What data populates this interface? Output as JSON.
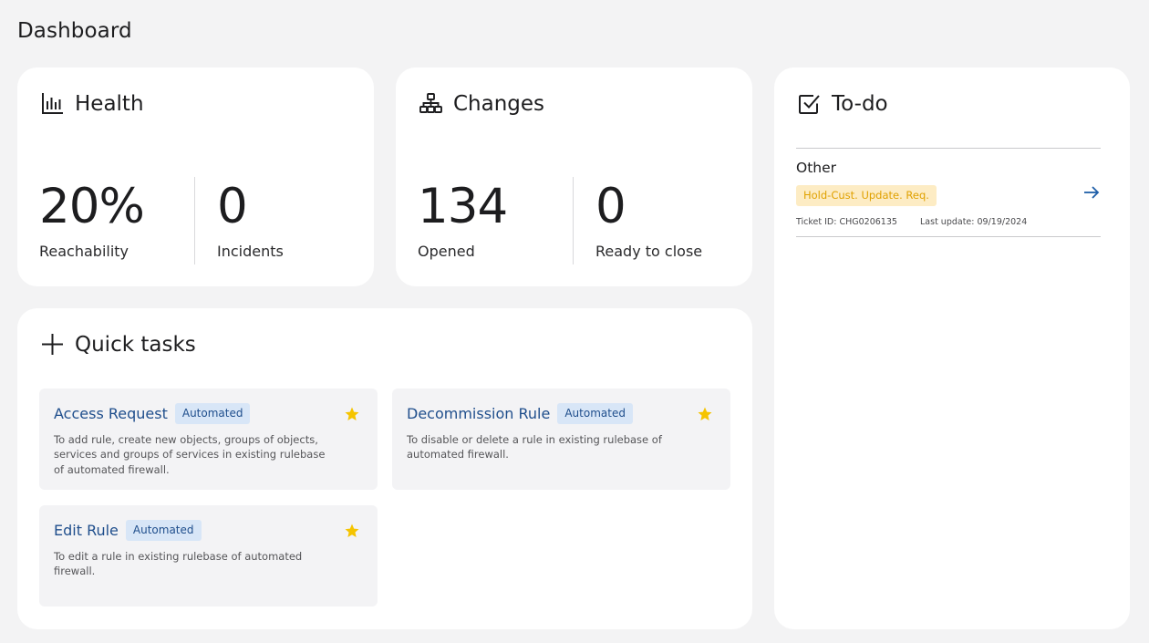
{
  "page": {
    "title": "Dashboard"
  },
  "health": {
    "title": "Health",
    "icon": "bar-chart-icon",
    "metrics": [
      {
        "value": "20%",
        "label": "Reachability"
      },
      {
        "value": "0",
        "label": "Incidents"
      }
    ]
  },
  "changes": {
    "title": "Changes",
    "icon": "hierarchy-icon",
    "metrics": [
      {
        "value": "134",
        "label": "Opened"
      },
      {
        "value": "0",
        "label": "Ready to close"
      }
    ]
  },
  "todo": {
    "title": "To-do",
    "icon": "checkbox-icon",
    "items": [
      {
        "category": "Other",
        "status": "Hold-Cust. Update. Req.",
        "ticket_id": "Ticket ID: CHG0206135",
        "last_update": "Last update: 09/19/2024",
        "action_icon": "arrow-right-icon"
      }
    ]
  },
  "quick_tasks": {
    "title": "Quick tasks",
    "icon": "plus-icon",
    "tasks": [
      {
        "name": "Access Request",
        "badge": "Automated",
        "description": "To add rule, create new objects, groups of objects, services and groups of services in existing rulebase of automated firewall.",
        "favorite": true
      },
      {
        "name": "Decommission Rule",
        "badge": "Automated",
        "description": "To disable or delete a rule in existing rulebase of automated firewall.",
        "favorite": true
      },
      {
        "name": "Edit Rule",
        "badge": "Automated",
        "description": "To edit a rule in existing rulebase of automated firewall.",
        "favorite": true
      }
    ]
  },
  "colors": {
    "background": "#f3f3f4",
    "card": "#ffffff",
    "link": "#1f4e8c",
    "badge_bg": "#d8e6f7",
    "star": "#f5c400",
    "status_bg": "#fdecc4",
    "status_text": "#e0a100",
    "arrow": "#1f5fa8"
  }
}
